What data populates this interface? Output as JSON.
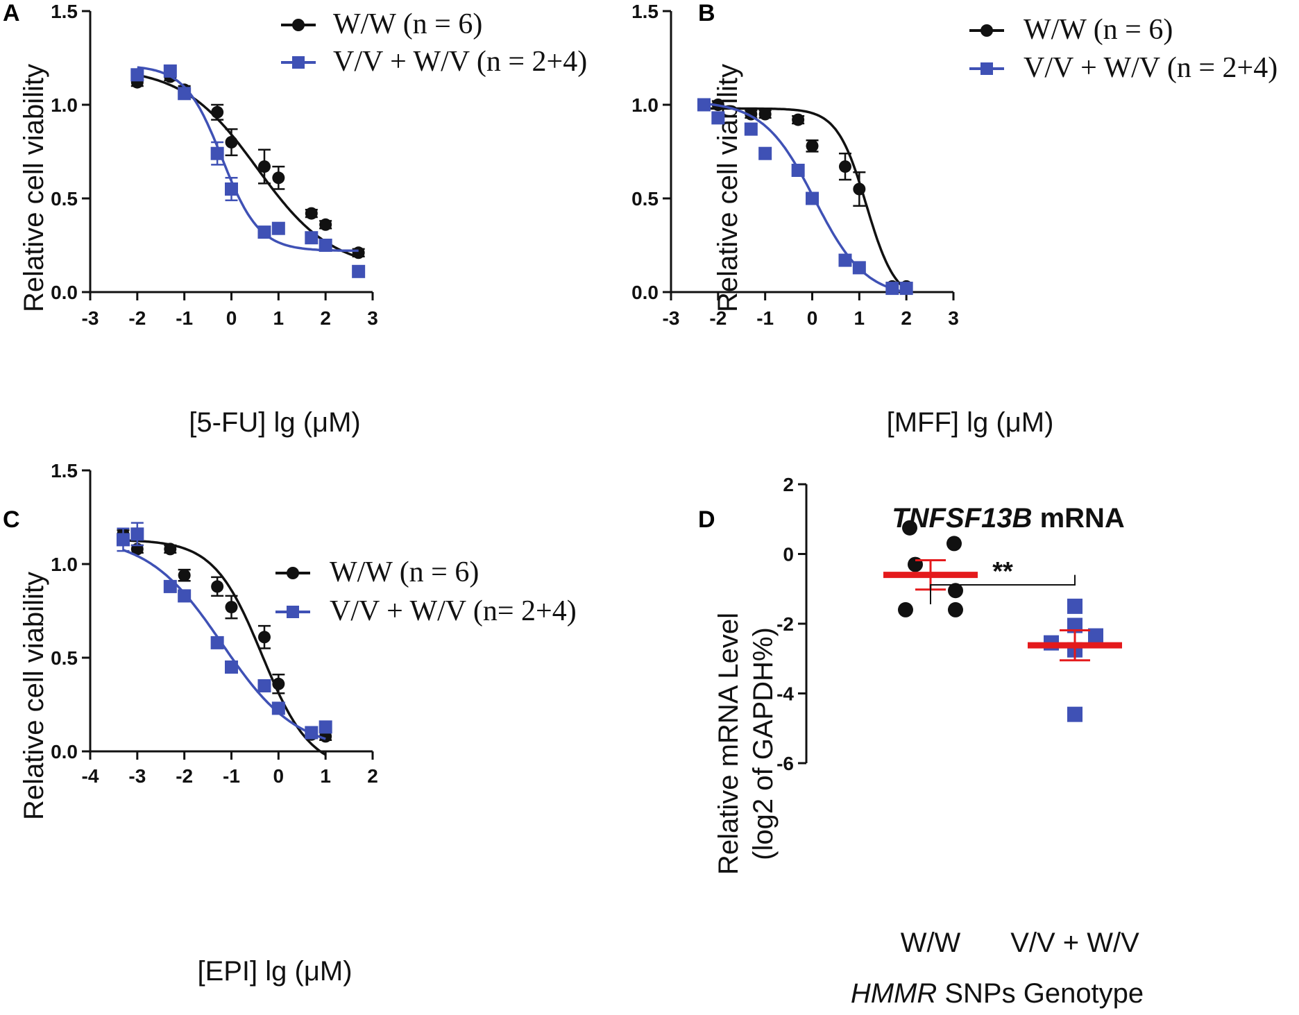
{
  "colors": {
    "black": "#111111",
    "blue": "#3f51b5",
    "red": "#e41a1c",
    "red_light": "#f08080"
  },
  "chart_data": [
    {
      "panel": "A",
      "type": "scatter",
      "fit": "sigmoid",
      "xlabel": "[5-FU] lg (μM)",
      "ylabel": "Relative cell viability",
      "xlim": [
        -3,
        3
      ],
      "ylim": [
        0,
        1.5
      ],
      "xticks": [
        -3,
        -2,
        -1,
        0,
        1,
        2,
        3
      ],
      "yticks": [
        0.0,
        0.5,
        1.0,
        1.5
      ],
      "ytick_labels": [
        "0.0",
        "0.5",
        "1.0",
        "1.5"
      ],
      "series": [
        {
          "name": "W/W (n = 6)",
          "marker": "circle",
          "color": "#111111",
          "x": [
            -2,
            -1.3,
            -1,
            -0.3,
            0,
            0.7,
            1,
            1.7,
            2,
            2.7
          ],
          "y": [
            1.12,
            1.15,
            1.08,
            0.96,
            0.8,
            0.67,
            0.61,
            0.42,
            0.36,
            0.21
          ],
          "err": [
            0.02,
            0.02,
            0.02,
            0.04,
            0.07,
            0.09,
            0.06,
            0.02,
            0.02,
            0.02
          ],
          "curve": {
            "top": 1.2,
            "bottom": 0.12,
            "logEC50": 0.55,
            "hill": 0.55
          }
        },
        {
          "name": "V/V + W/V (n = 2+4)",
          "marker": "square",
          "color": "#3f51b5",
          "x": [
            -2,
            -1.3,
            -1,
            -0.3,
            0,
            0.7,
            1,
            1.7,
            2,
            2.7
          ],
          "y": [
            1.16,
            1.18,
            1.06,
            0.74,
            0.55,
            0.32,
            0.34,
            0.29,
            0.25,
            0.11
          ],
          "err": [
            0.02,
            0.02,
            0.02,
            0.06,
            0.06,
            0.02,
            0.02,
            0.02,
            0.02,
            0.02
          ],
          "curve": {
            "top": 1.21,
            "bottom": 0.22,
            "logEC50": -0.2,
            "hill": 1.1
          }
        }
      ]
    },
    {
      "panel": "B",
      "type": "scatter",
      "fit": "sigmoid",
      "xlabel": "[MFF] lg (μM)",
      "ylabel": "Relative cell viability",
      "xlim": [
        -3,
        3
      ],
      "ylim": [
        0,
        1.5
      ],
      "xticks": [
        -3,
        -2,
        -1,
        0,
        1,
        2,
        3
      ],
      "yticks": [
        0.0,
        0.5,
        1.0,
        1.5
      ],
      "ytick_labels": [
        "0.0",
        "0.5",
        "1.0",
        "1.5"
      ],
      "series": [
        {
          "name": "W/W (n = 6)",
          "marker": "circle",
          "color": "#111111",
          "x": [
            -2.3,
            -2,
            -1.3,
            -1,
            -0.3,
            0,
            0.7,
            1,
            1.7,
            2
          ],
          "y": [
            1.0,
            1.0,
            0.95,
            0.95,
            0.92,
            0.78,
            0.67,
            0.55,
            0.03,
            0.03
          ],
          "err": [
            0.02,
            0.02,
            0.02,
            0.02,
            0.02,
            0.03,
            0.07,
            0.09,
            0.02,
            0.02
          ],
          "curve": {
            "top": 0.98,
            "bottom": -0.05,
            "logEC50": 1.15,
            "hill": 1.4
          }
        },
        {
          "name": "V/V + W/V (n = 2+4)",
          "marker": "square",
          "color": "#3f51b5",
          "x": [
            -2.3,
            -2,
            -1.3,
            -1,
            -0.3,
            0,
            0.7,
            1,
            1.7,
            2
          ],
          "y": [
            1.0,
            0.93,
            0.87,
            0.74,
            0.65,
            0.5,
            0.17,
            0.13,
            0.02,
            0.02
          ],
          "err": [
            0.02,
            0.02,
            0.02,
            0.02,
            0.02,
            0.02,
            0.02,
            0.02,
            0.02,
            0.02
          ],
          "curve": {
            "top": 1.02,
            "bottom": -0.03,
            "logEC50": 0.05,
            "hill": 0.8
          }
        }
      ]
    },
    {
      "panel": "C",
      "type": "scatter",
      "fit": "sigmoid",
      "xlabel": "[EPI] lg (μM)",
      "ylabel": "Relative cell viability",
      "xlim": [
        -4,
        2
      ],
      "ylim": [
        0,
        1.5
      ],
      "xticks": [
        -4,
        -3,
        -2,
        -1,
        0,
        1,
        2
      ],
      "yticks": [
        0.0,
        0.5,
        1.0,
        1.5
      ],
      "ytick_labels": [
        "0.0",
        "0.5",
        "1.0",
        "1.5"
      ],
      "series": [
        {
          "name": "W/W (n = 6)",
          "marker": "circle",
          "color": "#111111",
          "x": [
            -3.3,
            -3,
            -2.3,
            -2,
            -1.3,
            -1,
            -0.3,
            0,
            0.7,
            1
          ],
          "y": [
            1.16,
            1.08,
            1.08,
            0.94,
            0.88,
            0.77,
            0.61,
            0.36,
            0.09,
            0.08
          ],
          "err": [
            0.02,
            0.02,
            0.02,
            0.03,
            0.05,
            0.06,
            0.06,
            0.05,
            0.02,
            0.02
          ],
          "curve": {
            "top": 1.13,
            "bottom": -0.1,
            "logEC50": -0.35,
            "hill": 0.85
          }
        },
        {
          "name": "V/V + W/V (n= 2+4)",
          "marker": "square",
          "color": "#3f51b5",
          "x": [
            -3.3,
            -3,
            -2.3,
            -2,
            -1.3,
            -1,
            -0.3,
            0,
            0.7,
            1
          ],
          "y": [
            1.13,
            1.16,
            0.88,
            0.83,
            0.58,
            0.45,
            0.35,
            0.23,
            0.1,
            0.13
          ],
          "err": [
            0.06,
            0.06,
            0.02,
            0.02,
            0.02,
            0.02,
            0.02,
            0.02,
            0.02,
            0.02
          ],
          "curve": {
            "top": 1.15,
            "bottom": 0.0,
            "logEC50": -1.2,
            "hill": 0.55
          }
        }
      ]
    },
    {
      "panel": "D",
      "type": "scatter",
      "title_italic": "TNFSF13B",
      "title_rest": " mRNA",
      "ylabel_line1": "Relative mRNA Level",
      "ylabel_line2": "(log2 of GAPDH%)",
      "xlabel_italic": "HMMR",
      "xlabel_rest": " SNPs Genotype",
      "categories": [
        "W/W",
        "V/V + W/V"
      ],
      "ylim": [
        -6,
        2
      ],
      "yticks": [
        -6,
        -4,
        -2,
        0,
        2
      ],
      "ytick_labels": [
        "-6",
        "-4",
        "-2",
        "0",
        "2"
      ],
      "significance": "**",
      "groups": [
        {
          "name": "W/W",
          "marker": "circle",
          "color": "#111111",
          "points": [
            0.75,
            0.3,
            -0.3,
            -1.05,
            -1.6,
            -1.6
          ],
          "mean": -0.6,
          "sem": 0.42
        },
        {
          "name": "V/V + W/V",
          "marker": "square",
          "color": "#3f51b5",
          "points": [
            -1.5,
            -2.05,
            -2.35,
            -2.55,
            -2.75,
            -4.6
          ],
          "mean": -2.62,
          "sem": 0.43
        }
      ]
    }
  ]
}
